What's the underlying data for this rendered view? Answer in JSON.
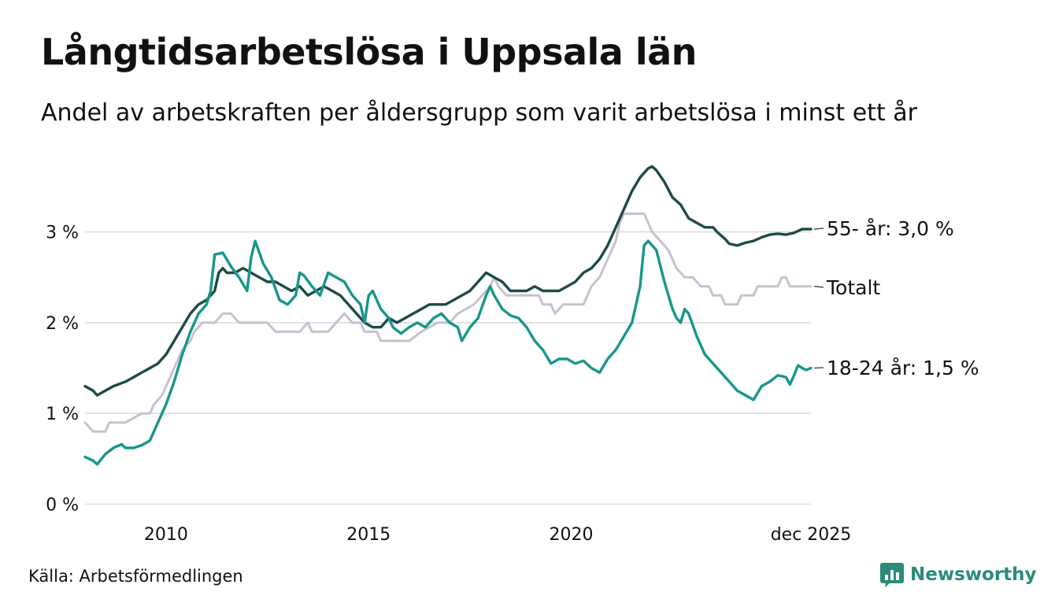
{
  "header": {
    "title": "Långtidsarbetslösa i Uppsala län",
    "subtitle": "Andel av arbetskraften per åldersgrupp som varit arbetslösa i minst ett år"
  },
  "footer": {
    "source": "Källa: Arbetsförmedlingen",
    "brand": "Newsworthy"
  },
  "colors": {
    "series_55": "#1d4a45",
    "series_total": "#c6c1cf",
    "series_18_24": "#17968a",
    "grid": "#dcdcdc",
    "brand": "#2a8b7a"
  },
  "chart_data": {
    "type": "line",
    "title": "Långtidsarbetslösa i Uppsala län",
    "subtitle": "Andel av arbetskraften per åldersgrupp som varit arbetslösa i minst ett år",
    "xlabel": "",
    "ylabel": "",
    "x_unit": "year (decimal)",
    "xlim": [
      2008.0,
      2025.917
    ],
    "ylim": [
      0,
      3.75
    ],
    "grid": true,
    "y_ticks": [
      {
        "value": 0,
        "label": "0 %"
      },
      {
        "value": 1,
        "label": "1 %"
      },
      {
        "value": 2,
        "label": "2 %"
      },
      {
        "value": 3,
        "label": "3 %"
      }
    ],
    "x_ticks": [
      {
        "value": 2010,
        "label": "2010"
      },
      {
        "value": 2015,
        "label": "2015"
      },
      {
        "value": 2020,
        "label": "2020"
      },
      {
        "value": 2025.917,
        "label": "dec 2025"
      }
    ],
    "series": [
      {
        "id": "total",
        "name": "Totalt",
        "end_label": "Totalt",
        "color": "#c6c1cf",
        "points": [
          [
            2008.0,
            0.9
          ],
          [
            2008.2,
            0.8
          ],
          [
            2008.5,
            0.8
          ],
          [
            2008.6,
            0.9
          ],
          [
            2009.0,
            0.9
          ],
          [
            2009.4,
            1.0
          ],
          [
            2009.6,
            1.0
          ],
          [
            2009.7,
            1.1
          ],
          [
            2009.9,
            1.2
          ],
          [
            2010.1,
            1.4
          ],
          [
            2010.4,
            1.7
          ],
          [
            2010.6,
            1.8
          ],
          [
            2010.7,
            1.9
          ],
          [
            2010.9,
            2.0
          ],
          [
            2011.2,
            2.0
          ],
          [
            2011.4,
            2.1
          ],
          [
            2011.6,
            2.1
          ],
          [
            2011.8,
            2.0
          ],
          [
            2012.5,
            2.0
          ],
          [
            2012.7,
            1.9
          ],
          [
            2013.3,
            1.9
          ],
          [
            2013.5,
            2.0
          ],
          [
            2013.6,
            1.9
          ],
          [
            2014.0,
            1.9
          ],
          [
            2014.2,
            2.0
          ],
          [
            2014.4,
            2.1
          ],
          [
            2014.6,
            2.0
          ],
          [
            2014.8,
            2.0
          ],
          [
            2014.9,
            1.9
          ],
          [
            2015.2,
            1.9
          ],
          [
            2015.3,
            1.8
          ],
          [
            2016.0,
            1.8
          ],
          [
            2016.3,
            1.9
          ],
          [
            2016.7,
            2.0
          ],
          [
            2017.0,
            2.0
          ],
          [
            2017.2,
            2.1
          ],
          [
            2017.6,
            2.2
          ],
          [
            2017.8,
            2.3
          ],
          [
            2018.0,
            2.4
          ],
          [
            2018.1,
            2.5
          ],
          [
            2018.2,
            2.4
          ],
          [
            2018.4,
            2.3
          ],
          [
            2019.2,
            2.3
          ],
          [
            2019.3,
            2.2
          ],
          [
            2019.5,
            2.2
          ],
          [
            2019.6,
            2.1
          ],
          [
            2019.8,
            2.2
          ],
          [
            2020.3,
            2.2
          ],
          [
            2020.4,
            2.3
          ],
          [
            2020.5,
            2.4
          ],
          [
            2020.7,
            2.5
          ],
          [
            2020.9,
            2.7
          ],
          [
            2021.0,
            2.8
          ],
          [
            2021.1,
            2.9
          ],
          [
            2021.2,
            3.1
          ],
          [
            2021.3,
            3.2
          ],
          [
            2021.8,
            3.2
          ],
          [
            2021.9,
            3.1
          ],
          [
            2022.0,
            3.0
          ],
          [
            2022.2,
            2.9
          ],
          [
            2022.4,
            2.8
          ],
          [
            2022.6,
            2.6
          ],
          [
            2022.8,
            2.5
          ],
          [
            2023.0,
            2.5
          ],
          [
            2023.2,
            2.4
          ],
          [
            2023.4,
            2.4
          ],
          [
            2023.5,
            2.3
          ],
          [
            2023.7,
            2.3
          ],
          [
            2023.8,
            2.2
          ],
          [
            2024.1,
            2.2
          ],
          [
            2024.2,
            2.3
          ],
          [
            2024.5,
            2.3
          ],
          [
            2024.6,
            2.4
          ],
          [
            2025.1,
            2.4
          ],
          [
            2025.2,
            2.5
          ],
          [
            2025.3,
            2.5
          ],
          [
            2025.4,
            2.4
          ],
          [
            2025.7,
            2.4
          ],
          [
            2025.917,
            2.4
          ]
        ]
      },
      {
        "id": "age_55",
        "name": "55- år",
        "end_label": "55- år: 3,0 %",
        "color": "#1d4a45",
        "points": [
          [
            2008.0,
            1.3
          ],
          [
            2008.2,
            1.25
          ],
          [
            2008.3,
            1.2
          ],
          [
            2008.5,
            1.25
          ],
          [
            2008.7,
            1.3
          ],
          [
            2009.0,
            1.35
          ],
          [
            2009.2,
            1.4
          ],
          [
            2009.4,
            1.45
          ],
          [
            2009.6,
            1.5
          ],
          [
            2009.8,
            1.55
          ],
          [
            2010.0,
            1.65
          ],
          [
            2010.2,
            1.8
          ],
          [
            2010.4,
            1.95
          ],
          [
            2010.6,
            2.1
          ],
          [
            2010.8,
            2.2
          ],
          [
            2011.0,
            2.25
          ],
          [
            2011.2,
            2.35
          ],
          [
            2011.3,
            2.55
          ],
          [
            2011.4,
            2.6
          ],
          [
            2011.5,
            2.55
          ],
          [
            2011.7,
            2.55
          ],
          [
            2011.9,
            2.6
          ],
          [
            2012.1,
            2.55
          ],
          [
            2012.3,
            2.5
          ],
          [
            2012.5,
            2.45
          ],
          [
            2012.7,
            2.45
          ],
          [
            2012.9,
            2.4
          ],
          [
            2013.1,
            2.35
          ],
          [
            2013.3,
            2.4
          ],
          [
            2013.5,
            2.3
          ],
          [
            2013.7,
            2.35
          ],
          [
            2013.9,
            2.4
          ],
          [
            2014.1,
            2.35
          ],
          [
            2014.3,
            2.3
          ],
          [
            2014.5,
            2.2
          ],
          [
            2014.7,
            2.1
          ],
          [
            2014.9,
            2.0
          ],
          [
            2015.1,
            1.95
          ],
          [
            2015.3,
            1.95
          ],
          [
            2015.5,
            2.05
          ],
          [
            2015.7,
            2.0
          ],
          [
            2015.9,
            2.05
          ],
          [
            2016.1,
            2.1
          ],
          [
            2016.3,
            2.15
          ],
          [
            2016.5,
            2.2
          ],
          [
            2016.7,
            2.2
          ],
          [
            2016.9,
            2.2
          ],
          [
            2017.1,
            2.25
          ],
          [
            2017.3,
            2.3
          ],
          [
            2017.5,
            2.35
          ],
          [
            2017.7,
            2.45
          ],
          [
            2017.9,
            2.55
          ],
          [
            2018.1,
            2.5
          ],
          [
            2018.3,
            2.45
          ],
          [
            2018.5,
            2.35
          ],
          [
            2018.7,
            2.35
          ],
          [
            2018.9,
            2.35
          ],
          [
            2019.1,
            2.4
          ],
          [
            2019.3,
            2.35
          ],
          [
            2019.5,
            2.35
          ],
          [
            2019.7,
            2.35
          ],
          [
            2019.9,
            2.4
          ],
          [
            2020.1,
            2.45
          ],
          [
            2020.3,
            2.55
          ],
          [
            2020.5,
            2.6
          ],
          [
            2020.7,
            2.7
          ],
          [
            2020.9,
            2.85
          ],
          [
            2021.1,
            3.05
          ],
          [
            2021.3,
            3.25
          ],
          [
            2021.5,
            3.45
          ],
          [
            2021.7,
            3.6
          ],
          [
            2021.9,
            3.7
          ],
          [
            2022.0,
            3.72
          ],
          [
            2022.1,
            3.68
          ],
          [
            2022.3,
            3.55
          ],
          [
            2022.5,
            3.38
          ],
          [
            2022.7,
            3.3
          ],
          [
            2022.9,
            3.15
          ],
          [
            2023.1,
            3.1
          ],
          [
            2023.3,
            3.05
          ],
          [
            2023.5,
            3.05
          ],
          [
            2023.6,
            3.0
          ],
          [
            2023.8,
            2.92
          ],
          [
            2023.9,
            2.87
          ],
          [
            2024.1,
            2.85
          ],
          [
            2024.3,
            2.88
          ],
          [
            2024.5,
            2.9
          ],
          [
            2024.7,
            2.94
          ],
          [
            2024.9,
            2.97
          ],
          [
            2025.1,
            2.98
          ],
          [
            2025.3,
            2.97
          ],
          [
            2025.5,
            2.99
          ],
          [
            2025.7,
            3.03
          ],
          [
            2025.917,
            3.03
          ]
        ]
      },
      {
        "id": "age_18_24",
        "name": "18-24 år",
        "end_label": "18-24 år: 1,5 %",
        "color": "#17968a",
        "points": [
          [
            2008.0,
            0.52
          ],
          [
            2008.2,
            0.48
          ],
          [
            2008.3,
            0.44
          ],
          [
            2008.5,
            0.55
          ],
          [
            2008.7,
            0.62
          ],
          [
            2008.9,
            0.66
          ],
          [
            2009.0,
            0.62
          ],
          [
            2009.2,
            0.62
          ],
          [
            2009.4,
            0.65
          ],
          [
            2009.6,
            0.7
          ],
          [
            2009.8,
            0.9
          ],
          [
            2010.0,
            1.1
          ],
          [
            2010.2,
            1.35
          ],
          [
            2010.4,
            1.65
          ],
          [
            2010.6,
            1.9
          ],
          [
            2010.8,
            2.1
          ],
          [
            2010.9,
            2.15
          ],
          [
            2011.0,
            2.2
          ],
          [
            2011.1,
            2.35
          ],
          [
            2011.2,
            2.75
          ],
          [
            2011.4,
            2.77
          ],
          [
            2011.6,
            2.62
          ],
          [
            2011.8,
            2.5
          ],
          [
            2012.0,
            2.35
          ],
          [
            2012.1,
            2.72
          ],
          [
            2012.2,
            2.9
          ],
          [
            2012.4,
            2.65
          ],
          [
            2012.6,
            2.5
          ],
          [
            2012.8,
            2.25
          ],
          [
            2013.0,
            2.2
          ],
          [
            2013.2,
            2.3
          ],
          [
            2013.3,
            2.55
          ],
          [
            2013.4,
            2.52
          ],
          [
            2013.6,
            2.4
          ],
          [
            2013.8,
            2.3
          ],
          [
            2014.0,
            2.55
          ],
          [
            2014.2,
            2.5
          ],
          [
            2014.4,
            2.45
          ],
          [
            2014.6,
            2.3
          ],
          [
            2014.8,
            2.2
          ],
          [
            2014.9,
            2.0
          ],
          [
            2015.0,
            2.3
          ],
          [
            2015.1,
            2.35
          ],
          [
            2015.3,
            2.15
          ],
          [
            2015.5,
            2.05
          ],
          [
            2015.6,
            1.95
          ],
          [
            2015.8,
            1.88
          ],
          [
            2016.0,
            1.95
          ],
          [
            2016.2,
            2.0
          ],
          [
            2016.4,
            1.95
          ],
          [
            2016.6,
            2.05
          ],
          [
            2016.8,
            2.1
          ],
          [
            2017.0,
            2.0
          ],
          [
            2017.2,
            1.95
          ],
          [
            2017.3,
            1.8
          ],
          [
            2017.5,
            1.95
          ],
          [
            2017.7,
            2.05
          ],
          [
            2017.9,
            2.3
          ],
          [
            2018.0,
            2.4
          ],
          [
            2018.1,
            2.3
          ],
          [
            2018.3,
            2.15
          ],
          [
            2018.5,
            2.08
          ],
          [
            2018.7,
            2.05
          ],
          [
            2018.9,
            1.95
          ],
          [
            2019.1,
            1.8
          ],
          [
            2019.3,
            1.7
          ],
          [
            2019.5,
            1.55
          ],
          [
            2019.7,
            1.6
          ],
          [
            2019.9,
            1.6
          ],
          [
            2020.1,
            1.55
          ],
          [
            2020.3,
            1.58
          ],
          [
            2020.5,
            1.5
          ],
          [
            2020.7,
            1.45
          ],
          [
            2020.9,
            1.6
          ],
          [
            2021.1,
            1.7
          ],
          [
            2021.3,
            1.85
          ],
          [
            2021.5,
            2.0
          ],
          [
            2021.7,
            2.4
          ],
          [
            2021.8,
            2.85
          ],
          [
            2021.9,
            2.9
          ],
          [
            2022.1,
            2.8
          ],
          [
            2022.3,
            2.45
          ],
          [
            2022.5,
            2.15
          ],
          [
            2022.6,
            2.05
          ],
          [
            2022.7,
            2.0
          ],
          [
            2022.8,
            2.15
          ],
          [
            2022.9,
            2.1
          ],
          [
            2023.1,
            1.85
          ],
          [
            2023.3,
            1.65
          ],
          [
            2023.5,
            1.55
          ],
          [
            2023.7,
            1.45
          ],
          [
            2023.9,
            1.35
          ],
          [
            2024.1,
            1.25
          ],
          [
            2024.3,
            1.2
          ],
          [
            2024.5,
            1.15
          ],
          [
            2024.7,
            1.3
          ],
          [
            2024.9,
            1.35
          ],
          [
            2025.1,
            1.42
          ],
          [
            2025.3,
            1.4
          ],
          [
            2025.4,
            1.32
          ],
          [
            2025.5,
            1.42
          ],
          [
            2025.6,
            1.53
          ],
          [
            2025.7,
            1.5
          ],
          [
            2025.8,
            1.48
          ],
          [
            2025.917,
            1.5
          ]
        ]
      }
    ]
  }
}
